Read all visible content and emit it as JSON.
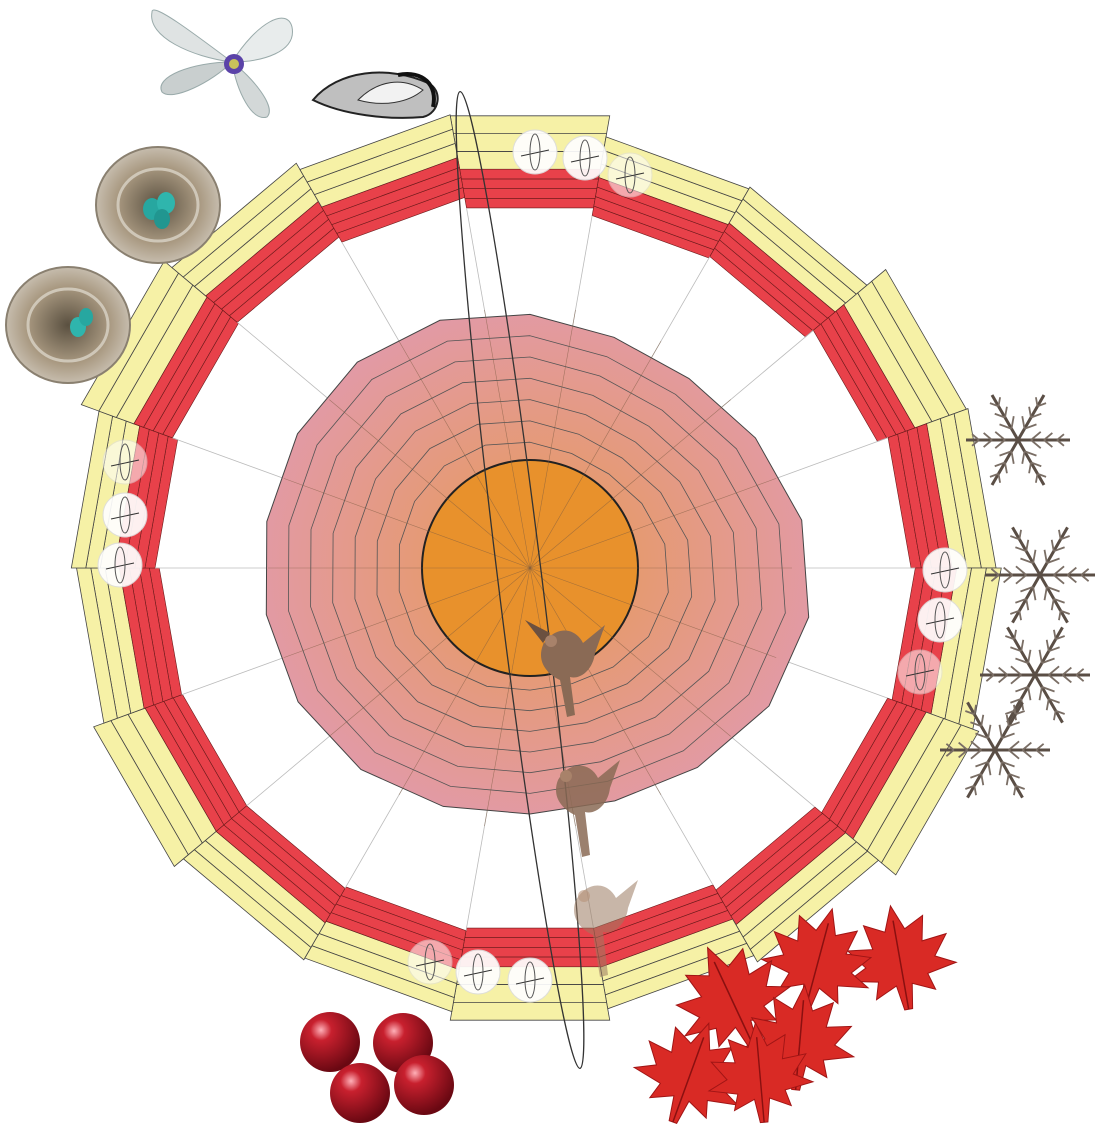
{
  "diagram": {
    "type": "seasonal-cycle-radial",
    "sectors": 18,
    "outer_band": {
      "color": "#f6f1a6",
      "layers": 3
    },
    "middle_band": {
      "color": "#e8414a",
      "layers": 4
    },
    "inner_polygon": {
      "color": "#eaa0a7",
      "rings": 7
    },
    "core": {
      "color": "#e8912c"
    },
    "icons": {
      "flower": "flower-icon",
      "seed": "seed-icon",
      "nest": "nest-with-eggs-icon",
      "snowflake": "snowflake-icon",
      "leaf": "maple-leaf-icon",
      "berry": "berry-icon",
      "bird": "sparrow-icon"
    },
    "colors": {
      "yellow": "#f6f1a6",
      "red": "#e8414a",
      "pink": "#e7a0aa",
      "orange": "#e8912c",
      "leaf_red": "#d92a25",
      "berry_red": "#a51622"
    }
  }
}
